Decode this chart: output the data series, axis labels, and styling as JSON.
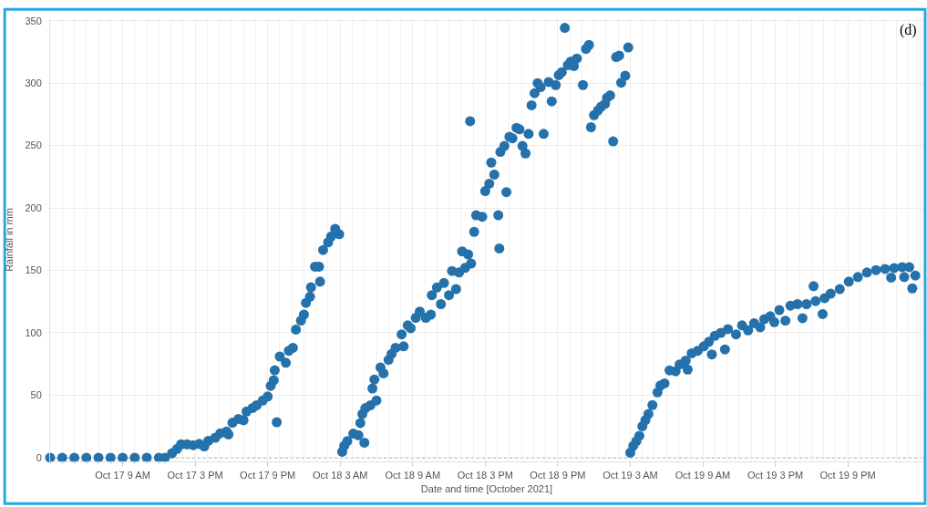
{
  "chart_data": {
    "type": "scatter",
    "xlabel": "Date and time [October 2021]",
    "ylabel": "Rainfall in mm",
    "annotations": [
      "(d)"
    ],
    "x": [
      "2021-10-17T03:00",
      "2021-10-17T04:00",
      "2021-10-17T05:00",
      "2021-10-17T06:00",
      "2021-10-17T07:00",
      "2021-10-17T08:00",
      "2021-10-17T09:00",
      "2021-10-17T10:00",
      "2021-10-17T11:00",
      "2021-10-17T12:00",
      "2021-10-17T12:30",
      "2021-10-17T13:05",
      "2021-10-17T13:30",
      "2021-10-17T13:50",
      "2021-10-17T14:20",
      "2021-10-17T14:50",
      "2021-10-17T15:20",
      "2021-10-17T15:45",
      "2021-10-17T16:05",
      "2021-10-17T16:40",
      "2021-10-17T17:05",
      "2021-10-17T17:35",
      "2021-10-17T17:45",
      "2021-10-17T18:05",
      "2021-10-17T18:35",
      "2021-10-17T19:00",
      "2021-10-17T19:15",
      "2021-10-17T19:45",
      "2021-10-17T20:05",
      "2021-10-17T20:35",
      "2021-10-17T21:00",
      "2021-10-17T21:15",
      "2021-10-17T21:30",
      "2021-10-17T21:35",
      "2021-10-17T21:45",
      "2021-10-17T22:00",
      "2021-10-17T22:30",
      "2021-10-17T22:45",
      "2021-10-17T23:05",
      "2021-10-17T23:20",
      "2021-10-17T23:45",
      "2021-10-18T00:00",
      "2021-10-18T00:10",
      "2021-10-18T00:30",
      "2021-10-18T00:35",
      "2021-10-18T00:55",
      "2021-10-18T01:15",
      "2021-10-18T01:20",
      "2021-10-18T01:35",
      "2021-10-18T02:00",
      "2021-10-18T02:15",
      "2021-10-18T02:35",
      "2021-10-18T02:55",
      "2021-10-18T03:10",
      "2021-10-18T03:20",
      "2021-10-18T03:35",
      "2021-10-18T04:05",
      "2021-10-18T04:30",
      "2021-10-18T04:40",
      "2021-10-18T04:50",
      "2021-10-18T05:00",
      "2021-10-18T05:05",
      "2021-10-18T05:30",
      "2021-10-18T05:40",
      "2021-10-18T05:50",
      "2021-10-18T06:00",
      "2021-10-18T06:20",
      "2021-10-18T06:35",
      "2021-10-18T07:00",
      "2021-10-18T07:15",
      "2021-10-18T07:35",
      "2021-10-18T08:05",
      "2021-10-18T08:15",
      "2021-10-18T08:35",
      "2021-10-18T08:50",
      "2021-10-18T09:15",
      "2021-10-18T09:35",
      "2021-10-18T10:05",
      "2021-10-18T10:30",
      "2021-10-18T10:35",
      "2021-10-18T11:00",
      "2021-10-18T11:20",
      "2021-10-18T11:35",
      "2021-10-18T12:00",
      "2021-10-18T12:15",
      "2021-10-18T12:35",
      "2021-10-18T12:50",
      "2021-10-18T13:05",
      "2021-10-18T13:20",
      "2021-10-18T13:35",
      "2021-10-18T13:45",
      "2021-10-18T13:50",
      "2021-10-18T14:05",
      "2021-10-18T14:15",
      "2021-10-18T14:45",
      "2021-10-18T15:00",
      "2021-10-18T15:20",
      "2021-10-18T15:30",
      "2021-10-18T15:45",
      "2021-10-18T16:05",
      "2021-10-18T16:10",
      "2021-10-18T16:15",
      "2021-10-18T16:35",
      "2021-10-18T16:45",
      "2021-10-18T17:00",
      "2021-10-18T17:15",
      "2021-10-18T17:35",
      "2021-10-18T17:50",
      "2021-10-18T18:05",
      "2021-10-18T18:20",
      "2021-10-18T18:35",
      "2021-10-18T18:50",
      "2021-10-18T19:05",
      "2021-10-18T19:20",
      "2021-10-18T19:35",
      "2021-10-18T19:50",
      "2021-10-18T20:15",
      "2021-10-18T20:30",
      "2021-10-18T20:50",
      "2021-10-18T21:05",
      "2021-10-18T21:20",
      "2021-10-18T21:35",
      "2021-10-18T21:50",
      "2021-10-18T22:05",
      "2021-10-18T22:20",
      "2021-10-18T22:35",
      "2021-10-18T23:05",
      "2021-10-18T23:20",
      "2021-10-18T23:35",
      "2021-10-18T23:45",
      "2021-10-19T00:00",
      "2021-10-19T00:20",
      "2021-10-19T00:35",
      "2021-10-19T00:55",
      "2021-10-19T01:05",
      "2021-10-19T01:20",
      "2021-10-19T01:35",
      "2021-10-19T01:50",
      "2021-10-19T02:05",
      "2021-10-19T02:15",
      "2021-10-19T02:35",
      "2021-10-19T02:50",
      "2021-10-19T03:00",
      "2021-10-19T03:15",
      "2021-10-19T03:30",
      "2021-10-19T03:45",
      "2021-10-19T04:00",
      "2021-10-19T04:15",
      "2021-10-19T04:30",
      "2021-10-19T04:50",
      "2021-10-19T05:15",
      "2021-10-19T05:30",
      "2021-10-19T05:50",
      "2021-10-19T06:15",
      "2021-10-19T06:45",
      "2021-10-19T07:05",
      "2021-10-19T07:35",
      "2021-10-19T07:45",
      "2021-10-19T08:05",
      "2021-10-19T08:35",
      "2021-10-19T09:05",
      "2021-10-19T09:30",
      "2021-10-19T09:45",
      "2021-10-19T10:00",
      "2021-10-19T10:30",
      "2021-10-19T10:50",
      "2021-10-19T11:05",
      "2021-10-19T11:45",
      "2021-10-19T12:15",
      "2021-10-19T12:45",
      "2021-10-19T13:15",
      "2021-10-19T13:45",
      "2021-10-19T14:05",
      "2021-10-19T14:35",
      "2021-10-19T14:55",
      "2021-10-19T15:20",
      "2021-10-19T15:50",
      "2021-10-19T16:15",
      "2021-10-19T16:50",
      "2021-10-19T17:15",
      "2021-10-19T17:35",
      "2021-10-19T18:10",
      "2021-10-19T18:20",
      "2021-10-19T18:55",
      "2021-10-19T19:05",
      "2021-10-19T19:35",
      "2021-10-19T20:20",
      "2021-10-19T21:05",
      "2021-10-19T21:50",
      "2021-10-19T22:35",
      "2021-10-19T23:20",
      "2021-10-20T00:05",
      "2021-10-20T00:35",
      "2021-10-20T00:50",
      "2021-10-20T01:30",
      "2021-10-20T01:40",
      "2021-10-20T02:05",
      "2021-10-20T02:20",
      "2021-10-20T02:35"
    ],
    "values": [
      0,
      0,
      0,
      0,
      0,
      0,
      0,
      0,
      0,
      0,
      0,
      3.5,
      7,
      10.7,
      10.7,
      10,
      11,
      9,
      13.5,
      16,
      19.5,
      21,
      18.6,
      28,
      31,
      30,
      37,
      39.8,
      42,
      45.7,
      49,
      57.5,
      62,
      70,
      28.4,
      81,
      76,
      85.6,
      88,
      102.6,
      109.8,
      114.6,
      124,
      129,
      136.5,
      153,
      153,
      141,
      166.3,
      172.5,
      177.2,
      183.3,
      179,
      4.7,
      9.5,
      13.2,
      19.2,
      18,
      27.7,
      34.9,
      12,
      39.7,
      42,
      55.4,
      62.6,
      45.8,
      72.3,
      67.5,
      78.3,
      83.1,
      88,
      98.8,
      89.2,
      106,
      103.7,
      112,
      117,
      112,
      114.6,
      130.2,
      136.3,
      123,
      139.9,
      130.2,
      149.5,
      135,
      148.3,
      165.2,
      152,
      162.8,
      269.5,
      155.5,
      180.9,
      194.2,
      193,
      213.5,
      219.5,
      236.4,
      226.8,
      194.2,
      167.6,
      244.9,
      249.7,
      212.7,
      257,
      255.8,
      264.2,
      263,
      249.7,
      243.7,
      259.4,
      282.3,
      292,
      300,
      296.8,
      259.4,
      300.9,
      285.4,
      298.5,
      306.4,
      308.8,
      344.3,
      314.4,
      317.3,
      313.7,
      319.7,
      298.5,
      327.4,
      330.6,
      264.7,
      274.3,
      278.2,
      281.1,
      283.5,
      288.3,
      290.2,
      253.3,
      320.9,
      322.1,
      300.4,
      305.9,
      328.6,
      4,
      9.5,
      13.2,
      17.5,
      25.2,
      30,
      34.9,
      42.1,
      52.3,
      57.8,
      59.5,
      69.9,
      69.2,
      74.7,
      77.8,
      70.6,
      83.6,
      85.6,
      89.2,
      92.8,
      82.7,
      97.6,
      100,
      86.7,
      103,
      98.8,
      106,
      102,
      107.7,
      104.4,
      110.9,
      113.3,
      108.5,
      118.2,
      109.7,
      121.8,
      123,
      111.7,
      123,
      137.4,
      125.4,
      115,
      127.8,
      131.4,
      135,
      141,
      144.7,
      148.3,
      150.3,
      151.2,
      144.2,
      151.9,
      152.6,
      144.7,
      152.6,
      135.6,
      145.9
    ],
    "color": "#2471ab",
    "marker": "circle",
    "xlim": [
      "2021-10-17T03:00",
      "2021-10-20T03:15"
    ],
    "xticks": [
      {
        "value": "2021-10-17T09:00",
        "label": "Oct 17 9 AM"
      },
      {
        "value": "2021-10-17T15:00",
        "label": "Oct 17 3 PM"
      },
      {
        "value": "2021-10-17T21:00",
        "label": "Oct 17 9 PM"
      },
      {
        "value": "2021-10-18T03:00",
        "label": "Oct 18 3 AM"
      },
      {
        "value": "2021-10-18T09:00",
        "label": "Oct 18 9 AM"
      },
      {
        "value": "2021-10-18T15:00",
        "label": "Oct 18 3 PM"
      },
      {
        "value": "2021-10-18T21:00",
        "label": "Oct 18 9 PM"
      },
      {
        "value": "2021-10-19T03:00",
        "label": "Oct 19 3 AM"
      },
      {
        "value": "2021-10-19T09:00",
        "label": "Oct 19 9 AM"
      },
      {
        "value": "2021-10-19T15:00",
        "label": "Oct 19 3 PM"
      },
      {
        "value": "2021-10-19T21:00",
        "label": "Oct 19 9 PM"
      }
    ],
    "ylim": [
      -3,
      352
    ],
    "yticks": [
      0,
      50,
      100,
      150,
      200,
      250,
      300,
      350
    ],
    "ref_lines": [
      {
        "axis": "y",
        "value": 0,
        "color": "#555555",
        "line_style": "dotted"
      }
    ],
    "grid": true
  }
}
